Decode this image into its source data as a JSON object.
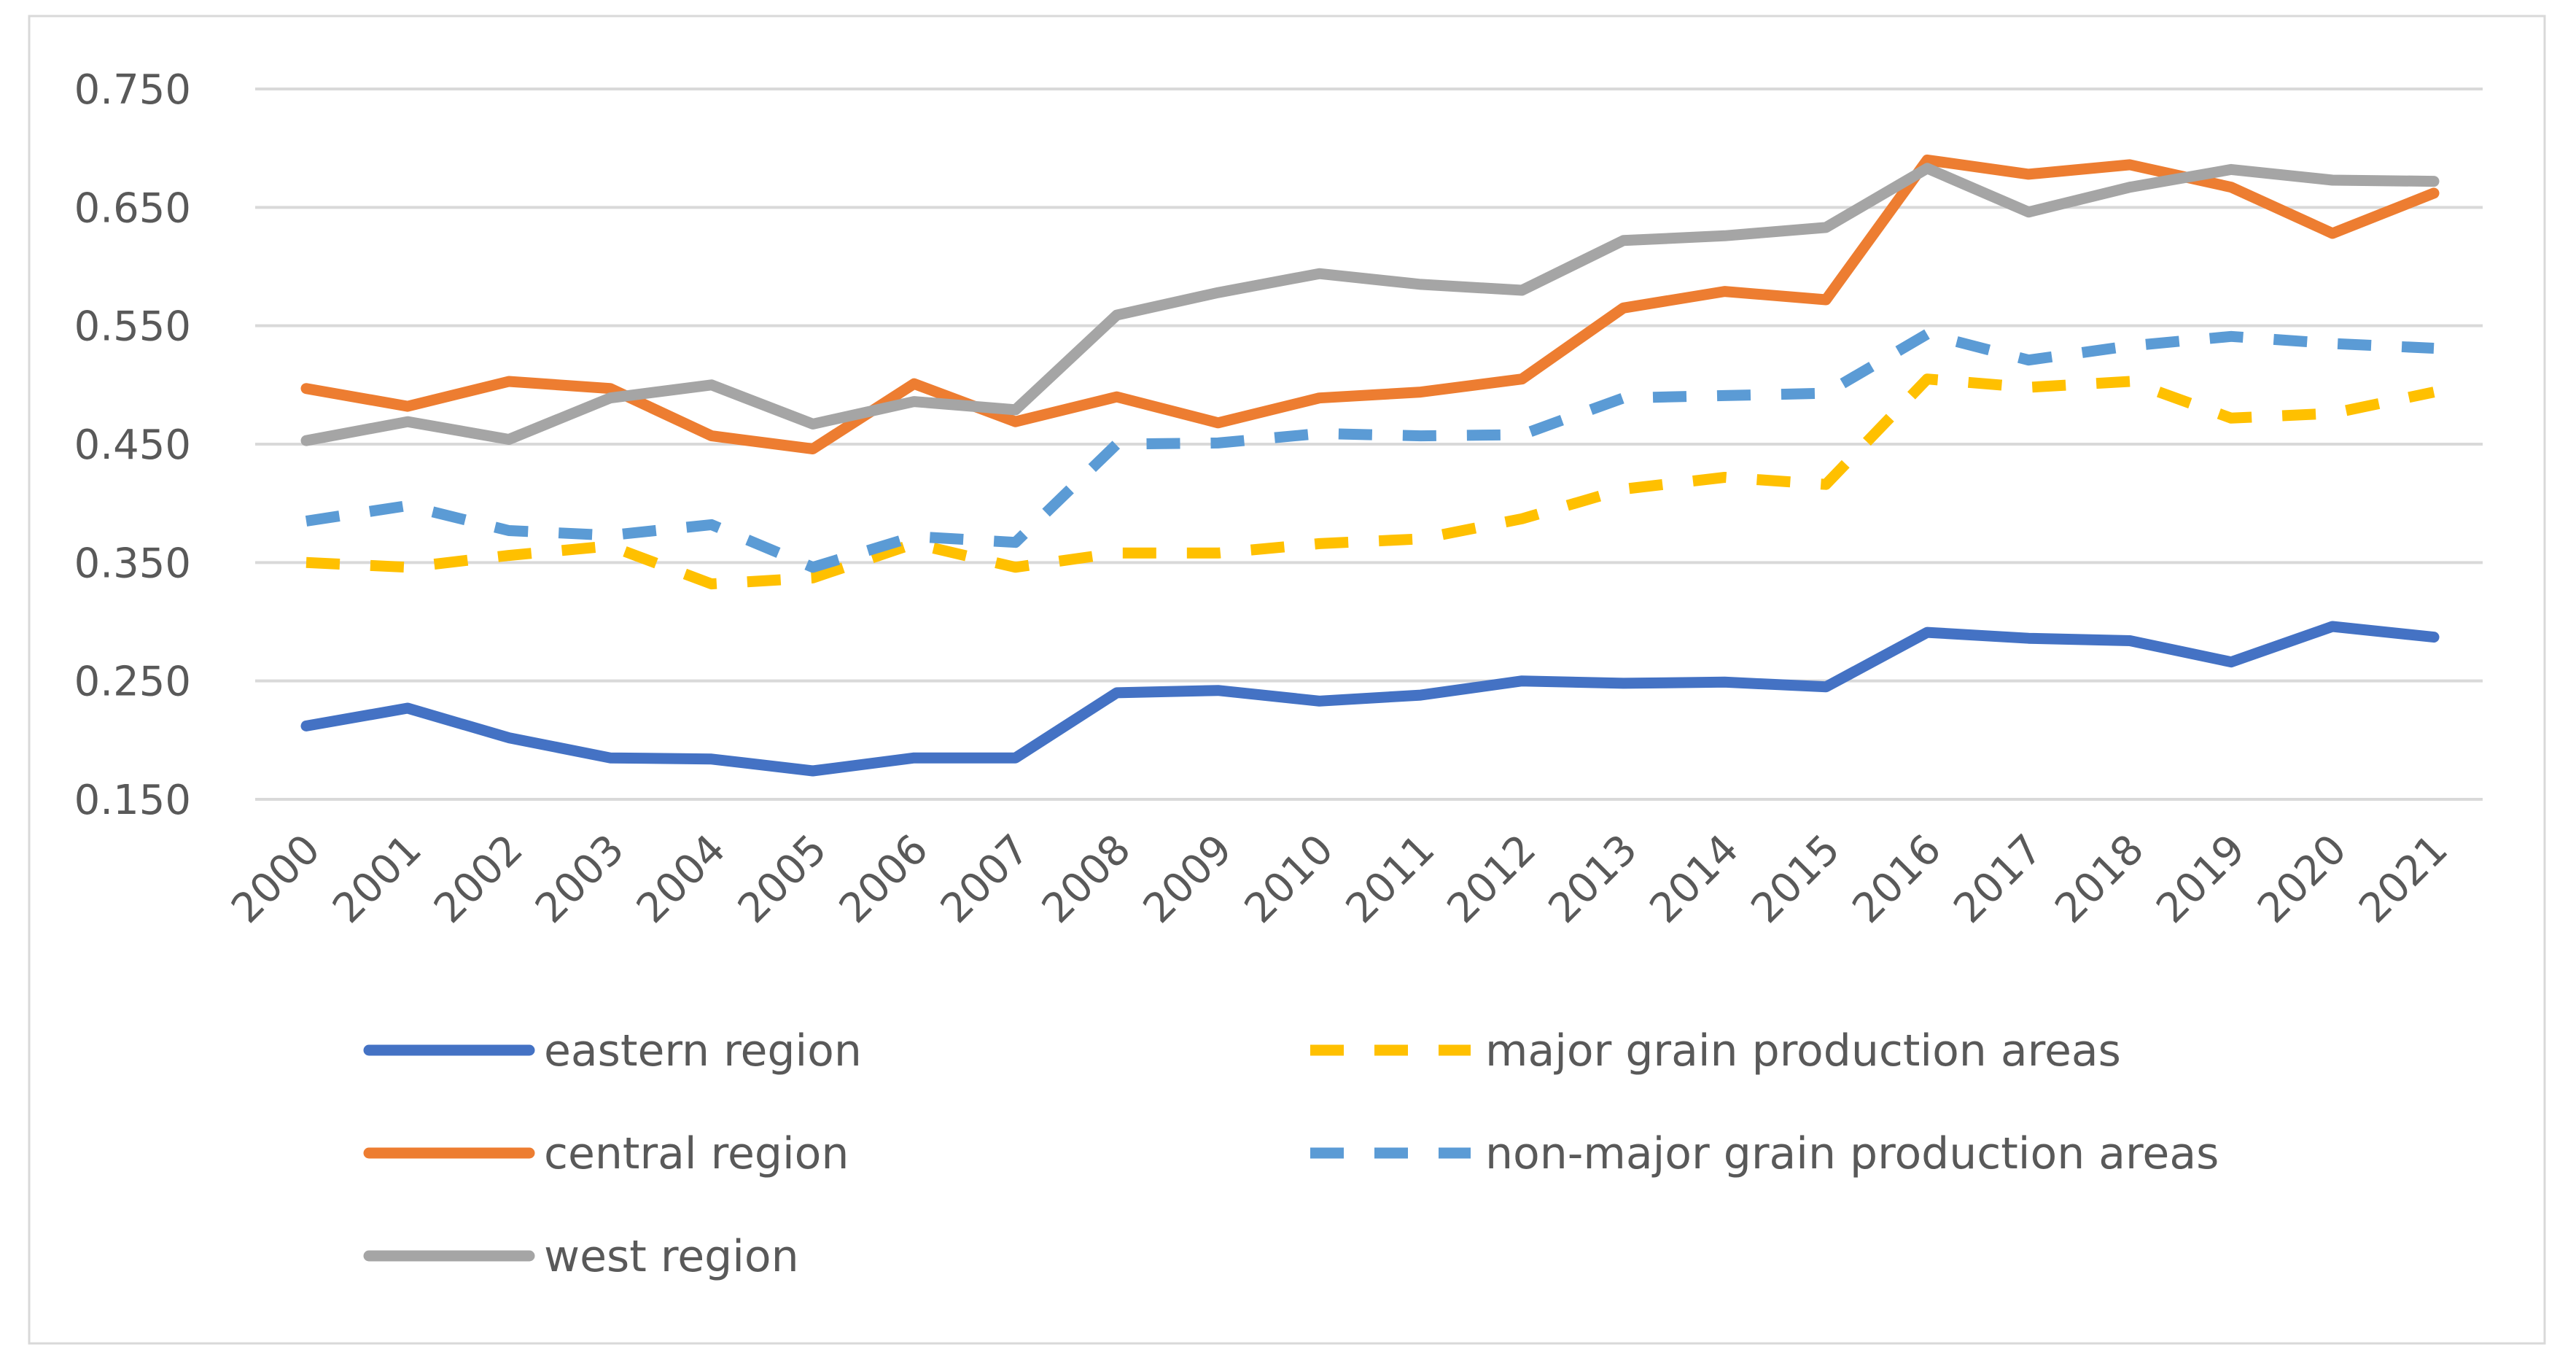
{
  "chart_data": {
    "type": "line",
    "title": "",
    "xlabel": "",
    "ylabel": "",
    "ylim": [
      0.15,
      0.75
    ],
    "y_ticks": [
      "0.150",
      "0.250",
      "0.350",
      "0.450",
      "0.550",
      "0.650",
      "0.750"
    ],
    "y_tick_values": [
      0.15,
      0.25,
      0.35,
      0.45,
      0.55,
      0.65,
      0.75
    ],
    "grid": true,
    "legend_position": "bottom",
    "categories": [
      "2000",
      "2001",
      "2002",
      "2003",
      "2004",
      "2005",
      "2006",
      "2007",
      "2008",
      "2009",
      "2010",
      "2011",
      "2012",
      "2013",
      "2014",
      "2015",
      "2016",
      "2017",
      "2018",
      "2019",
      "2020",
      "2021"
    ],
    "series": [
      {
        "name": "eastern region",
        "color": "#4472C4",
        "dashed": false,
        "values": [
          0.212,
          0.227,
          0.202,
          0.185,
          0.184,
          0.174,
          0.185,
          0.185,
          0.24,
          0.242,
          0.233,
          0.238,
          0.25,
          0.248,
          0.249,
          0.245,
          0.291,
          0.286,
          0.284,
          0.266,
          0.296,
          0.287
        ]
      },
      {
        "name": "central region",
        "color": "#ED7D31",
        "dashed": false,
        "values": [
          0.497,
          0.482,
          0.503,
          0.497,
          0.457,
          0.446,
          0.501,
          0.469,
          0.49,
          0.468,
          0.489,
          0.494,
          0.505,
          0.565,
          0.579,
          0.572,
          0.69,
          0.678,
          0.686,
          0.667,
          0.628,
          0.662
        ]
      },
      {
        "name": "west region",
        "color": "#A5A5A5",
        "dashed": false,
        "values": [
          0.453,
          0.469,
          0.454,
          0.489,
          0.5,
          0.467,
          0.486,
          0.479,
          0.559,
          0.578,
          0.594,
          0.585,
          0.58,
          0.622,
          0.626,
          0.633,
          0.683,
          0.646,
          0.667,
          0.682,
          0.673,
          0.672
        ]
      },
      {
        "name": "major grain production areas",
        "color": "#FFC000",
        "dashed": true,
        "values": [
          0.35,
          0.346,
          0.356,
          0.364,
          0.332,
          0.337,
          0.366,
          0.346,
          0.358,
          0.358,
          0.366,
          0.37,
          0.387,
          0.412,
          0.422,
          0.416,
          0.505,
          0.498,
          0.503,
          0.472,
          0.476,
          0.494
        ]
      },
      {
        "name": "non-major grain production areas",
        "color": "#5B9BD5",
        "dashed": true,
        "values": [
          0.385,
          0.398,
          0.377,
          0.373,
          0.382,
          0.346,
          0.372,
          0.367,
          0.45,
          0.451,
          0.459,
          0.457,
          0.458,
          0.489,
          0.491,
          0.493,
          0.543,
          0.521,
          0.533,
          0.541,
          0.535,
          0.531
        ]
      }
    ]
  }
}
